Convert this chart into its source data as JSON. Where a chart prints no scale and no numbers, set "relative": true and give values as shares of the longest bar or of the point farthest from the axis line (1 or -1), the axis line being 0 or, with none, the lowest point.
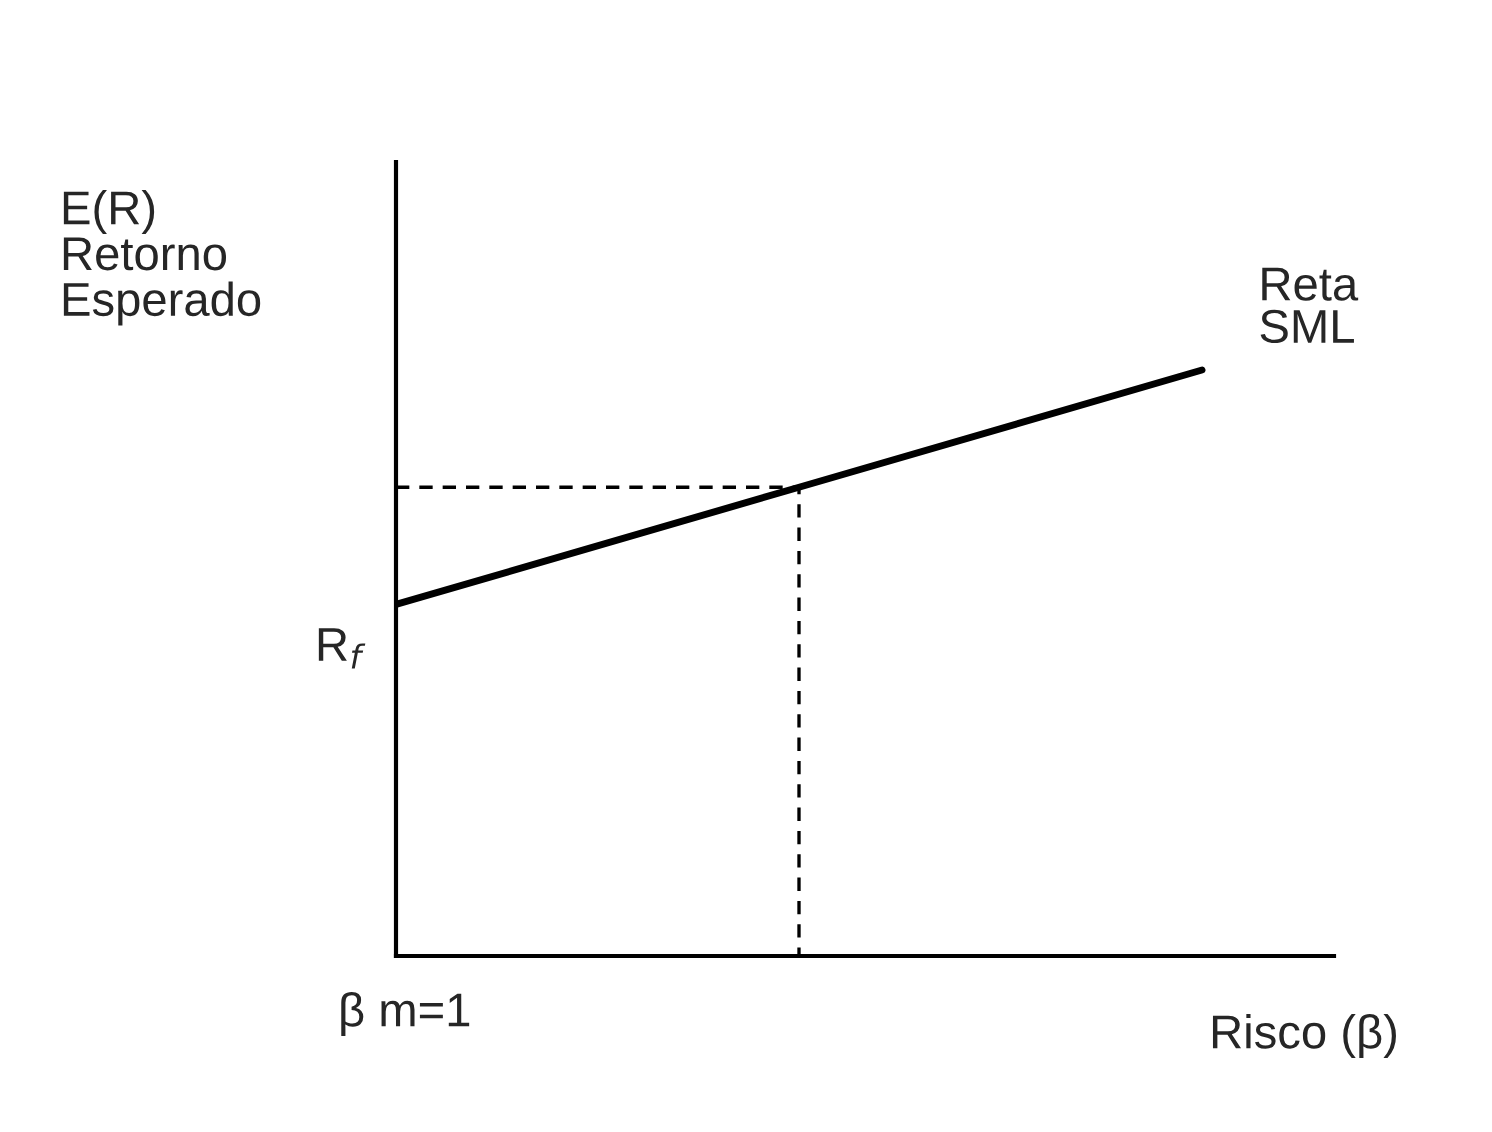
{
  "chart_data": {
    "type": "line",
    "relative": true,
    "legend": false,
    "marker": "none",
    "ylabel": "E(R)\nRetorno\nEsperado",
    "xlabel": "Risco (β)",
    "categories": [
      null,
      null,
      null
    ],
    "series": [
      {
        "name": "Reta SML",
        "color": "#000000",
        "line_style": "solid",
        "values": [
          0.6,
          0.8,
          1
        ]
      }
    ],
    "ref_lines": [
      {
        "axis": "y",
        "value": 0.8,
        "color": "#000000",
        "line_style": "dashed"
      }
    ],
    "annotations": [
      "R$_{f}$",
      "β m=1"
    ]
  }
}
